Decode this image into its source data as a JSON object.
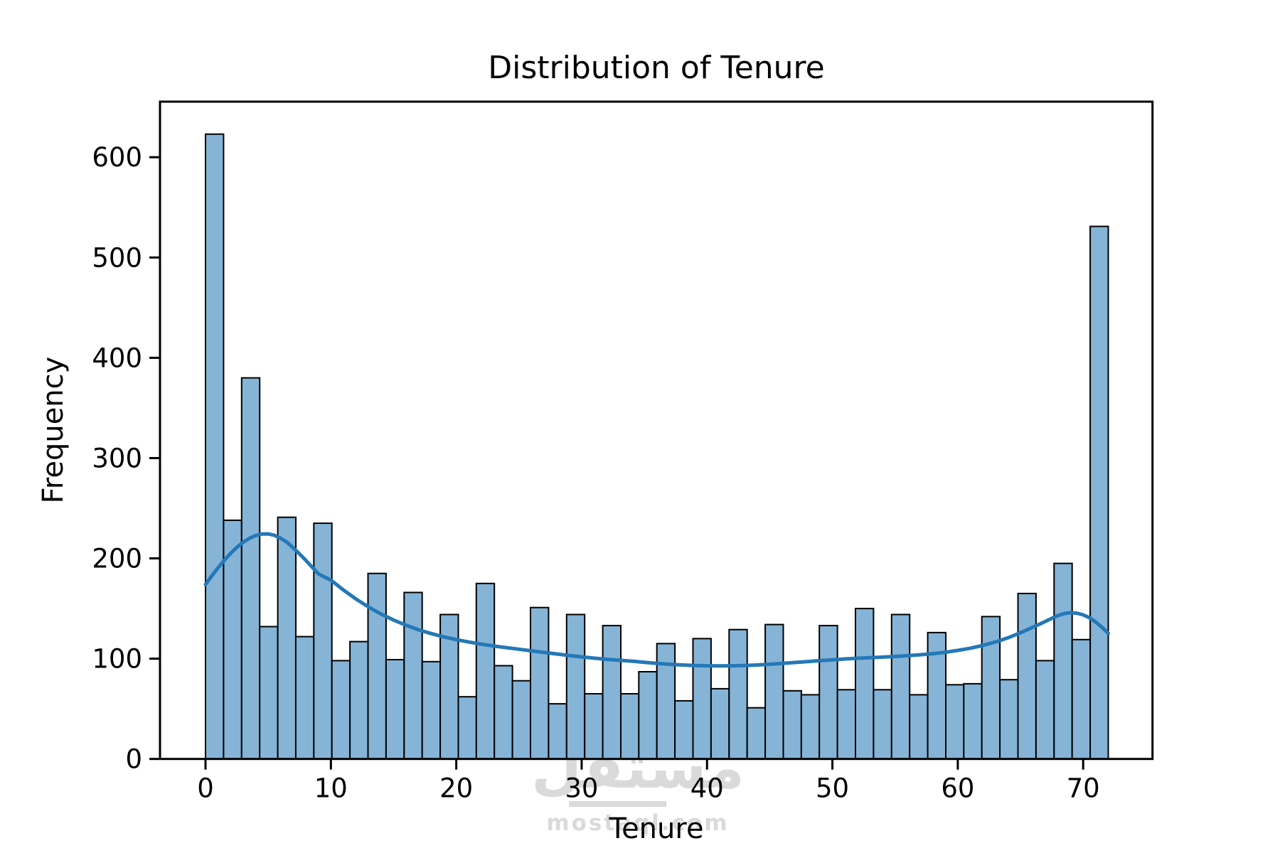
{
  "figure": {
    "title": "Distribution of Tenure",
    "xlabel": "Tenure",
    "ylabel": "Frequency"
  },
  "watermark": {
    "arabic": "مستقل",
    "domain": "mostaql.com",
    "color": "#dadada"
  },
  "colors": {
    "bar_fill": "#85b4d7",
    "bar_edge": "#000000",
    "kde_line": "#2478b7",
    "spine": "#000000",
    "text": "#000000",
    "background": "#ffffff"
  },
  "chart_data": {
    "type": "bar",
    "subtype": "histogram_with_kde_overlay",
    "title": "Distribution of Tenure",
    "xlabel": "Tenure",
    "ylabel": "Frequency",
    "grid": "off",
    "legend": "none",
    "xlim": [
      -3.63,
      75.53
    ],
    "ylim": [
      0,
      655.4
    ],
    "x_ticks": [
      0,
      10,
      20,
      30,
      40,
      50,
      60,
      70
    ],
    "y_ticks": [
      0,
      100,
      200,
      300,
      400,
      500,
      600
    ],
    "bins": {
      "start": 0,
      "end": 72,
      "count": 50,
      "width": 1.44
    },
    "counts": [
      623,
      238,
      380,
      132,
      241,
      122,
      235,
      98,
      117,
      185,
      99,
      166,
      97,
      144,
      62,
      175,
      93,
      78,
      151,
      55,
      144,
      65,
      133,
      65,
      87,
      115,
      58,
      120,
      70,
      129,
      51,
      134,
      68,
      64,
      133,
      69,
      150,
      69,
      144,
      64,
      126,
      74,
      75,
      142,
      79,
      165,
      98,
      195,
      119,
      531
    ],
    "kde": {
      "name": "KDE",
      "x": [
        0,
        0.5,
        1,
        1.5,
        2,
        2.5,
        3,
        3.5,
        4,
        4.5,
        5,
        5.5,
        6,
        6.5,
        7,
        7.5,
        8,
        8.5,
        9,
        9.5,
        10,
        11,
        12,
        13,
        14,
        15,
        16,
        17,
        18,
        19,
        20,
        21,
        22,
        23,
        24,
        25,
        26,
        27,
        28,
        29,
        30,
        31,
        32,
        33,
        34,
        35,
        36,
        37,
        38,
        39,
        40,
        41,
        42,
        43,
        44,
        45,
        46,
        47,
        48,
        49,
        50,
        51,
        52,
        53,
        54,
        55,
        56,
        57,
        58,
        59,
        60,
        61,
        62,
        63,
        64,
        65,
        66,
        67,
        67.5,
        68,
        68.5,
        69,
        69.5,
        70,
        70.5,
        71,
        71.5,
        72
      ],
      "y": [
        174,
        182.5,
        190.5,
        198,
        205,
        211,
        216,
        220,
        222.8,
        224.3,
        224.4,
        223,
        220,
        216,
        210.5,
        204.5,
        198,
        191.3,
        184.6,
        181.4,
        178.3,
        168.5,
        159.5,
        151.5,
        144.5,
        138.5,
        133.3,
        128.8,
        125,
        121.8,
        119,
        116.6,
        114.5,
        112.6,
        111,
        109.4,
        107.8,
        106.2,
        104.7,
        103.2,
        101.8,
        100.5,
        99.4,
        98.4,
        97.5,
        96.3,
        95.3,
        94.4,
        93.7,
        93.2,
        92.9,
        92.8,
        92.9,
        93.2,
        93.7,
        94.4,
        95.3,
        96.2,
        97.1,
        98,
        98.9,
        99.7,
        100.4,
        101,
        101.6,
        102.2,
        103,
        103.9,
        105,
        106.4,
        108.2,
        110.4,
        113.2,
        116.6,
        120.8,
        125.8,
        131.4,
        137.2,
        140.2,
        143,
        145,
        145.9,
        145.4,
        143.7,
        140.8,
        136.6,
        131.3,
        125.3
      ]
    }
  }
}
